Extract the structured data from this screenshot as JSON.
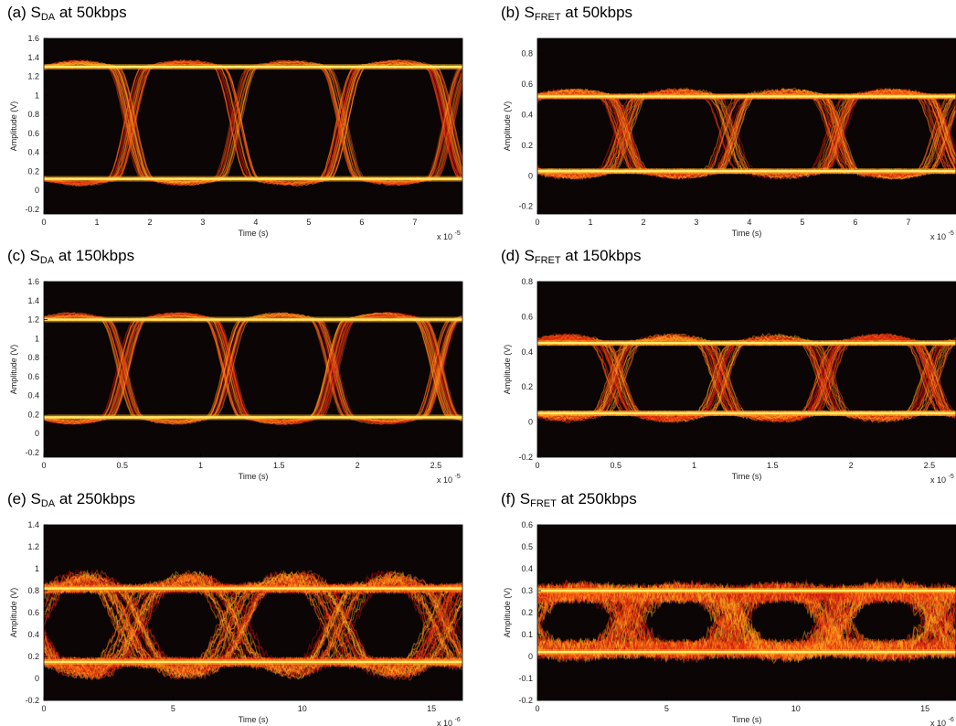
{
  "chart_data": [
    {
      "id": "a",
      "type": "line",
      "title": {
        "prefix": "(a) S",
        "sub": "DA",
        "suffix": " at 50kbps"
      },
      "xlabel": "Time (s)",
      "ylabel": "Amplitude (V)",
      "xscale_label": "x 10",
      "xscale_exp": "-5",
      "xlim": [
        0,
        7.9
      ],
      "ylim": [
        -0.25,
        1.6
      ],
      "xticks": [
        0,
        1,
        2,
        3,
        4,
        5,
        6,
        7
      ],
      "yticks": [
        -0.2,
        0,
        0.2,
        0.4,
        0.6,
        0.8,
        1,
        1.2,
        1.4,
        1.6
      ],
      "levels": {
        "low": 0.12,
        "high": 1.3
      },
      "bit_period": 2.0,
      "transition_start": 1.3,
      "overshoot": 0.1,
      "style": "clean"
    },
    {
      "id": "b",
      "type": "line",
      "title": {
        "prefix": "(b) S",
        "sub": "FRET",
        "suffix": " at 50kbps"
      },
      "xlabel": "Time (s)",
      "ylabel": "Amplitude (V)",
      "xscale_label": "x 10",
      "xscale_exp": "-5",
      "xlim": [
        0,
        7.9
      ],
      "ylim": [
        -0.25,
        0.9
      ],
      "xticks": [
        0,
        1,
        2,
        3,
        4,
        5,
        6,
        7
      ],
      "yticks": [
        -0.2,
        0,
        0.2,
        0.4,
        0.6,
        0.8
      ],
      "levels": {
        "low": 0.03,
        "high": 0.52
      },
      "bit_period": 2.0,
      "transition_start": 1.3,
      "overshoot": 0.15,
      "style": "noisy"
    },
    {
      "id": "c",
      "type": "line",
      "title": {
        "prefix": "(c) S",
        "sub": "DA",
        "suffix": " at 150kbps"
      },
      "xlabel": "Time (s)",
      "ylabel": "Amplitude (V)",
      "xscale_label": "x 10",
      "xscale_exp": "-5",
      "xlim": [
        0,
        2.67
      ],
      "ylim": [
        -0.25,
        1.6
      ],
      "xticks": [
        0,
        0.5,
        1,
        1.5,
        2,
        2.5
      ],
      "yticks": [
        -0.2,
        0,
        0.2,
        0.4,
        0.6,
        0.8,
        1,
        1.2,
        1.4,
        1.6
      ],
      "levels": {
        "low": 0.17,
        "high": 1.2
      },
      "bit_period": 0.667,
      "transition_start": 0.4,
      "overshoot": 0.12,
      "style": "clean"
    },
    {
      "id": "d",
      "type": "line",
      "title": {
        "prefix": "(d) S",
        "sub": "FRET",
        "suffix": " at 150kbps"
      },
      "xlabel": "Time (s)",
      "ylabel": "Amplitude (V)",
      "xscale_label": "x 10",
      "xscale_exp": "-5",
      "xlim": [
        0,
        2.67
      ],
      "ylim": [
        -0.2,
        0.8
      ],
      "xticks": [
        0,
        0.5,
        1,
        1.5,
        2,
        2.5
      ],
      "yticks": [
        -0.2,
        0,
        0.2,
        0.4,
        0.6,
        0.8
      ],
      "levels": {
        "low": 0.05,
        "high": 0.45
      },
      "bit_period": 0.667,
      "transition_start": 0.4,
      "overshoot": 0.2,
      "style": "noisy"
    },
    {
      "id": "e",
      "type": "line",
      "title": {
        "prefix": "(e) S",
        "sub": "DA",
        "suffix": " at 250kbps"
      },
      "xlabel": "Time (s)",
      "ylabel": "Amplitude (V)",
      "xscale_label": "x 10",
      "xscale_exp": "-6",
      "xlim": [
        0,
        16.2
      ],
      "ylim": [
        -0.2,
        1.4
      ],
      "xticks": [
        0,
        5,
        10,
        15
      ],
      "yticks": [
        -0.2,
        0,
        0.2,
        0.4,
        0.6,
        0.8,
        1,
        1.2,
        1.4
      ],
      "levels": {
        "low": 0.15,
        "high": 0.82
      },
      "bit_period": 4.0,
      "transition_start": 2.5,
      "overshoot": 0.35,
      "style": "closing"
    },
    {
      "id": "f",
      "type": "line",
      "title": {
        "prefix": "(f) S",
        "sub": "FRET",
        "suffix": " at 250kbps"
      },
      "xlabel": "Time (s)",
      "ylabel": "Amplitude (V)",
      "xscale_label": "x 10",
      "xscale_exp": "-6",
      "xlim": [
        0,
        16.2
      ],
      "ylim": [
        -0.2,
        0.6
      ],
      "xticks": [
        0,
        5,
        10,
        15
      ],
      "yticks": [
        -0.2,
        -0.1,
        0,
        0.1,
        0.2,
        0.3,
        0.4,
        0.5,
        0.6
      ],
      "levels": {
        "low": 0.02,
        "high": 0.3
      },
      "bit_period": 4.0,
      "transition_start": 2.5,
      "overshoot": 0.15,
      "style": "closed"
    }
  ],
  "colors": {
    "background": "#0b0505",
    "trace_dim": "#c01010",
    "trace_mid": "#ff5010",
    "trace_hot": "#ffb020",
    "trace_peak": "#fff070"
  }
}
